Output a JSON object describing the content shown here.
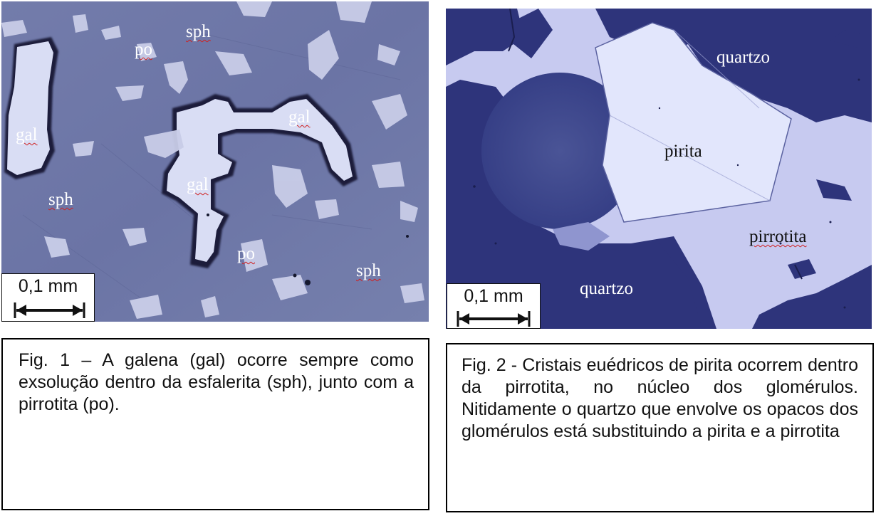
{
  "figure1": {
    "labels": {
      "sph_top": "sph",
      "po_top": "po",
      "gal_left": "gal",
      "gal_right": "gal",
      "gal_center": "gal",
      "sph_left": "sph",
      "po_bottom": "po",
      "sph_right": "sph"
    },
    "scale_label": "0,1 mm",
    "caption": "Fig. 1 – A galena (gal) ocorre sempre como exsolução dentro da esfalerita (sph), junto com a pirrotita (po)."
  },
  "figure2": {
    "labels": {
      "quartzo_top": "quartzo",
      "pirita": "pirita",
      "pirrotita": "pirrotita",
      "quartzo_bottom": "quartzo"
    },
    "scale_label": "0,1 mm",
    "caption": "Fig. 2 - Cristais euédricos de pirita ocorrem dentro da pirrotita, no núcleo dos glomérulos. Nitidamente o quartzo que envolve os opacos dos glomérulos está substituindo a pirita e a pirrotita"
  },
  "colors": {
    "sphalerite_matrix": "#6f78a8",
    "galena": "#d8dcf4",
    "quartz": "#2f357c",
    "pyrite": "#dfe3fb",
    "pyrrhotite": "#c6c9f0"
  }
}
